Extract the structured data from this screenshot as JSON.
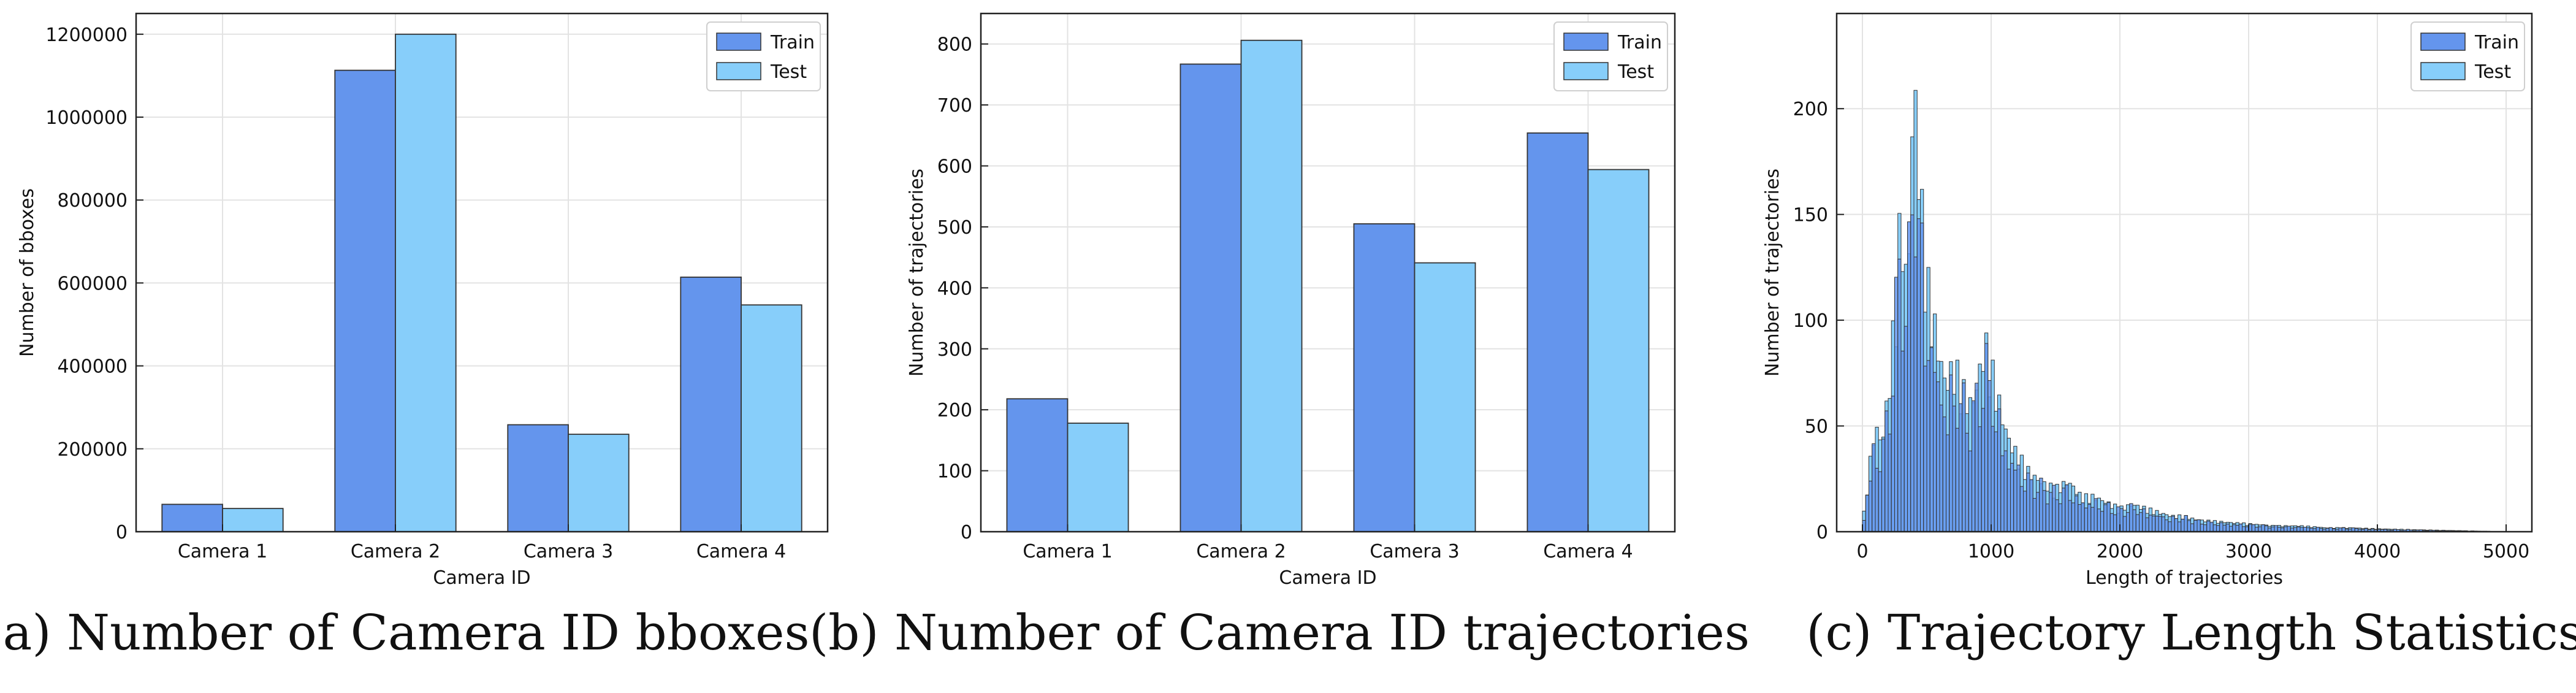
{
  "colors": {
    "train": "#6495ED",
    "test": "#87CEFA",
    "edge": "#333333",
    "grid": "#e3e3e3"
  },
  "captions": [
    "(a) Number of Camera ID bboxes",
    "(b) Number of Camera ID trajectories",
    "(c) Trajectory Length Statistics"
  ],
  "chart_data": [
    {
      "type": "bar",
      "categories": [
        "Camera 1",
        "Camera 2",
        "Camera 3",
        "Camera 4"
      ],
      "series": [
        {
          "name": "Train",
          "values": [
            66000,
            1113000,
            258000,
            614000
          ]
        },
        {
          "name": "Test",
          "values": [
            56000,
            1200000,
            235000,
            547000
          ]
        }
      ],
      "xlabel": "Camera ID",
      "ylabel": "Number of bboxes",
      "ylim": [
        0,
        1250000
      ],
      "yticks": [
        0,
        200000,
        400000,
        600000,
        800000,
        1000000,
        1200000
      ],
      "ytick_labels": [
        "0",
        "200000",
        "400000",
        "600000",
        "800000",
        "1000000",
        "1200000"
      ],
      "grid": true,
      "legend": "top-right"
    },
    {
      "type": "bar",
      "categories": [
        "Camera 1",
        "Camera 2",
        "Camera 3",
        "Camera 4"
      ],
      "series": [
        {
          "name": "Train",
          "values": [
            218,
            767,
            505,
            654
          ]
        },
        {
          "name": "Test",
          "values": [
            178,
            806,
            441,
            594
          ]
        }
      ],
      "xlabel": "Camera ID",
      "ylabel": "Number of trajectories",
      "ylim": [
        0,
        850
      ],
      "yticks": [
        0,
        100,
        200,
        300,
        400,
        500,
        600,
        700,
        800
      ],
      "ytick_labels": [
        "0",
        "100",
        "200",
        "300",
        "400",
        "500",
        "600",
        "700",
        "800"
      ],
      "grid": true,
      "legend": "top-right"
    },
    {
      "type": "bar",
      "subtype": "histogram",
      "bin_width": 25,
      "x_start": 0,
      "bins_shown": 200,
      "counts_approx_by_length": [
        [
          0,
          3
        ],
        [
          50,
          30
        ],
        [
          100,
          55
        ],
        [
          150,
          45
        ],
        [
          200,
          70
        ],
        [
          250,
          110
        ],
        [
          300,
          165
        ],
        [
          350,
          120
        ],
        [
          400,
          235
        ],
        [
          450,
          175
        ],
        [
          500,
          130
        ],
        [
          550,
          110
        ],
        [
          600,
          90
        ],
        [
          650,
          75
        ],
        [
          700,
          85
        ],
        [
          750,
          80
        ],
        [
          800,
          70
        ],
        [
          850,
          65
        ],
        [
          900,
          78
        ],
        [
          950,
          98
        ],
        [
          1000,
          85
        ],
        [
          1050,
          70
        ],
        [
          1100,
          55
        ],
        [
          1150,
          45
        ],
        [
          1200,
          40
        ],
        [
          1300,
          30
        ],
        [
          1400,
          25
        ],
        [
          1500,
          22
        ],
        [
          1600,
          26
        ],
        [
          1700,
          18
        ],
        [
          1800,
          18
        ],
        [
          1900,
          15
        ],
        [
          2000,
          12
        ],
        [
          2100,
          14
        ],
        [
          2200,
          12
        ],
        [
          2300,
          10
        ],
        [
          2400,
          8
        ],
        [
          2500,
          8
        ],
        [
          2600,
          6
        ],
        [
          2800,
          5
        ],
        [
          3000,
          4
        ],
        [
          3200,
          3
        ],
        [
          3400,
          3
        ],
        [
          3600,
          2
        ],
        [
          3800,
          2
        ],
        [
          4000,
          1.5
        ],
        [
          4300,
          1
        ],
        [
          4600,
          0.6
        ],
        [
          5000,
          0
        ]
      ],
      "series": [
        {
          "name": "Train"
        },
        {
          "name": "Test"
        }
      ],
      "xlabel": "Length of trajectories",
      "ylabel": "Number of trajectories",
      "xlim": [
        -200,
        5200
      ],
      "ylim": [
        0,
        245
      ],
      "xticks": [
        0,
        1000,
        2000,
        3000,
        4000,
        5000
      ],
      "xtick_labels": [
        "0",
        "1000",
        "2000",
        "3000",
        "4000",
        "5000"
      ],
      "yticks": [
        0,
        50,
        100,
        150,
        200
      ],
      "ytick_labels": [
        "0",
        "50",
        "100",
        "150",
        "200"
      ],
      "grid": true,
      "legend": "top-right"
    }
  ]
}
